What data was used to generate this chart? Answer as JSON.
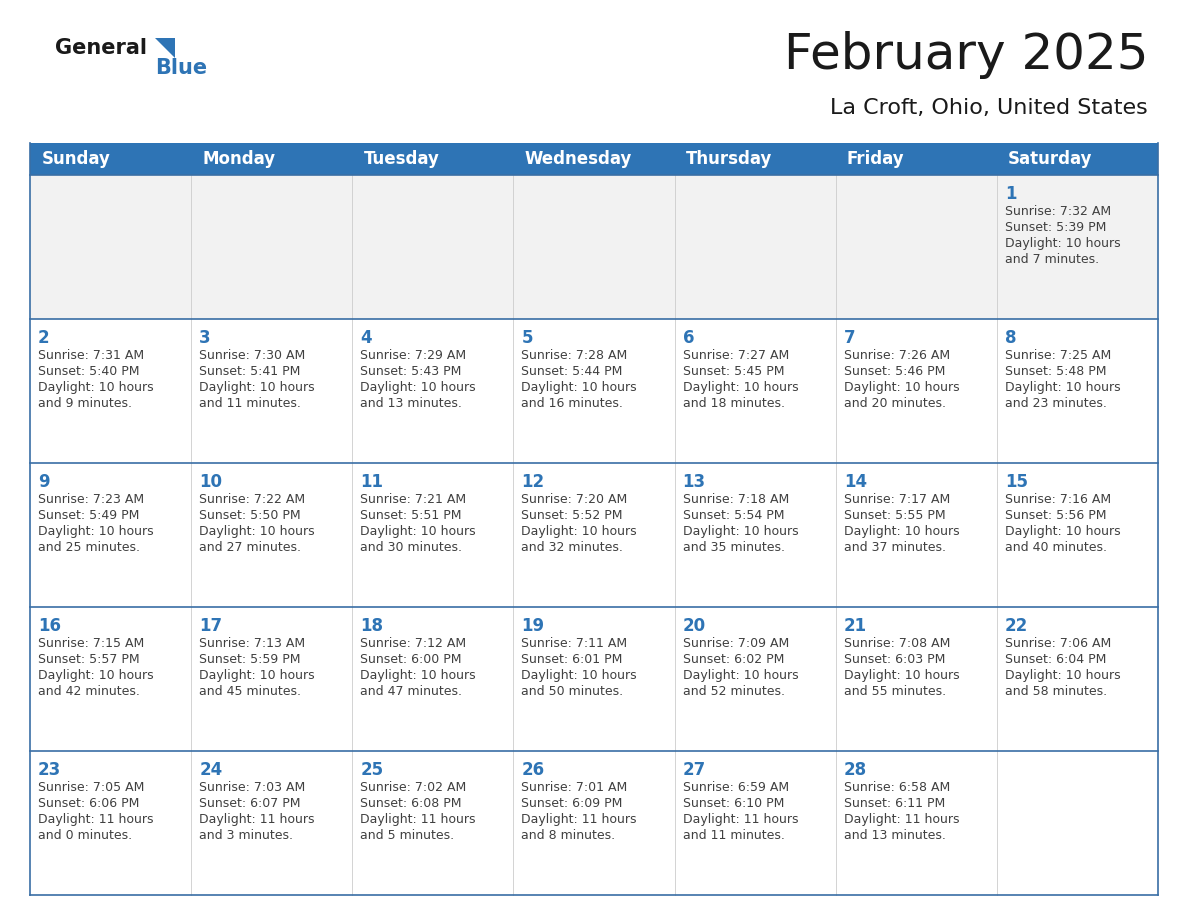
{
  "title": "February 2025",
  "subtitle": "La Croft, Ohio, United States",
  "header_bg": "#2E74B5",
  "header_text_color": "#FFFFFF",
  "header_font_size": 12,
  "title_font_size": 36,
  "subtitle_font_size": 16,
  "day_headers": [
    "Sunday",
    "Monday",
    "Tuesday",
    "Wednesday",
    "Thursday",
    "Friday",
    "Saturday"
  ],
  "cell_border_color": "#3A6EA5",
  "row_border_color": "#3A6EA5",
  "cell_bg": "#FFFFFF",
  "row1_bg": "#F2F2F2",
  "date_color": "#2E74B5",
  "info_color": "#404040",
  "logo_general_color": "#1a1a1a",
  "logo_blue_color": "#2E74B5",
  "logo_triangle_color": "#2E74B5",
  "calendar": [
    [
      null,
      null,
      null,
      null,
      null,
      null,
      {
        "day": 1,
        "sunrise": "7:32 AM",
        "sunset": "5:39 PM",
        "daylight": "10 hours",
        "daylight2": "and 7 minutes."
      }
    ],
    [
      {
        "day": 2,
        "sunrise": "7:31 AM",
        "sunset": "5:40 PM",
        "daylight": "10 hours",
        "daylight2": "and 9 minutes."
      },
      {
        "day": 3,
        "sunrise": "7:30 AM",
        "sunset": "5:41 PM",
        "daylight": "10 hours",
        "daylight2": "and 11 minutes."
      },
      {
        "day": 4,
        "sunrise": "7:29 AM",
        "sunset": "5:43 PM",
        "daylight": "10 hours",
        "daylight2": "and 13 minutes."
      },
      {
        "day": 5,
        "sunrise": "7:28 AM",
        "sunset": "5:44 PM",
        "daylight": "10 hours",
        "daylight2": "and 16 minutes."
      },
      {
        "day": 6,
        "sunrise": "7:27 AM",
        "sunset": "5:45 PM",
        "daylight": "10 hours",
        "daylight2": "and 18 minutes."
      },
      {
        "day": 7,
        "sunrise": "7:26 AM",
        "sunset": "5:46 PM",
        "daylight": "10 hours",
        "daylight2": "and 20 minutes."
      },
      {
        "day": 8,
        "sunrise": "7:25 AM",
        "sunset": "5:48 PM",
        "daylight": "10 hours",
        "daylight2": "and 23 minutes."
      }
    ],
    [
      {
        "day": 9,
        "sunrise": "7:23 AM",
        "sunset": "5:49 PM",
        "daylight": "10 hours",
        "daylight2": "and 25 minutes."
      },
      {
        "day": 10,
        "sunrise": "7:22 AM",
        "sunset": "5:50 PM",
        "daylight": "10 hours",
        "daylight2": "and 27 minutes."
      },
      {
        "day": 11,
        "sunrise": "7:21 AM",
        "sunset": "5:51 PM",
        "daylight": "10 hours",
        "daylight2": "and 30 minutes."
      },
      {
        "day": 12,
        "sunrise": "7:20 AM",
        "sunset": "5:52 PM",
        "daylight": "10 hours",
        "daylight2": "and 32 minutes."
      },
      {
        "day": 13,
        "sunrise": "7:18 AM",
        "sunset": "5:54 PM",
        "daylight": "10 hours",
        "daylight2": "and 35 minutes."
      },
      {
        "day": 14,
        "sunrise": "7:17 AM",
        "sunset": "5:55 PM",
        "daylight": "10 hours",
        "daylight2": "and 37 minutes."
      },
      {
        "day": 15,
        "sunrise": "7:16 AM",
        "sunset": "5:56 PM",
        "daylight": "10 hours",
        "daylight2": "and 40 minutes."
      }
    ],
    [
      {
        "day": 16,
        "sunrise": "7:15 AM",
        "sunset": "5:57 PM",
        "daylight": "10 hours",
        "daylight2": "and 42 minutes."
      },
      {
        "day": 17,
        "sunrise": "7:13 AM",
        "sunset": "5:59 PM",
        "daylight": "10 hours",
        "daylight2": "and 45 minutes."
      },
      {
        "day": 18,
        "sunrise": "7:12 AM",
        "sunset": "6:00 PM",
        "daylight": "10 hours",
        "daylight2": "and 47 minutes."
      },
      {
        "day": 19,
        "sunrise": "7:11 AM",
        "sunset": "6:01 PM",
        "daylight": "10 hours",
        "daylight2": "and 50 minutes."
      },
      {
        "day": 20,
        "sunrise": "7:09 AM",
        "sunset": "6:02 PM",
        "daylight": "10 hours",
        "daylight2": "and 52 minutes."
      },
      {
        "day": 21,
        "sunrise": "7:08 AM",
        "sunset": "6:03 PM",
        "daylight": "10 hours",
        "daylight2": "and 55 minutes."
      },
      {
        "day": 22,
        "sunrise": "7:06 AM",
        "sunset": "6:04 PM",
        "daylight": "10 hours",
        "daylight2": "and 58 minutes."
      }
    ],
    [
      {
        "day": 23,
        "sunrise": "7:05 AM",
        "sunset": "6:06 PM",
        "daylight": "11 hours",
        "daylight2": "and 0 minutes."
      },
      {
        "day": 24,
        "sunrise": "7:03 AM",
        "sunset": "6:07 PM",
        "daylight": "11 hours",
        "daylight2": "and 3 minutes."
      },
      {
        "day": 25,
        "sunrise": "7:02 AM",
        "sunset": "6:08 PM",
        "daylight": "11 hours",
        "daylight2": "and 5 minutes."
      },
      {
        "day": 26,
        "sunrise": "7:01 AM",
        "sunset": "6:09 PM",
        "daylight": "11 hours",
        "daylight2": "and 8 minutes."
      },
      {
        "day": 27,
        "sunrise": "6:59 AM",
        "sunset": "6:10 PM",
        "daylight": "11 hours",
        "daylight2": "and 11 minutes."
      },
      {
        "day": 28,
        "sunrise": "6:58 AM",
        "sunset": "6:11 PM",
        "daylight": "11 hours",
        "daylight2": "and 13 minutes."
      },
      null
    ]
  ]
}
